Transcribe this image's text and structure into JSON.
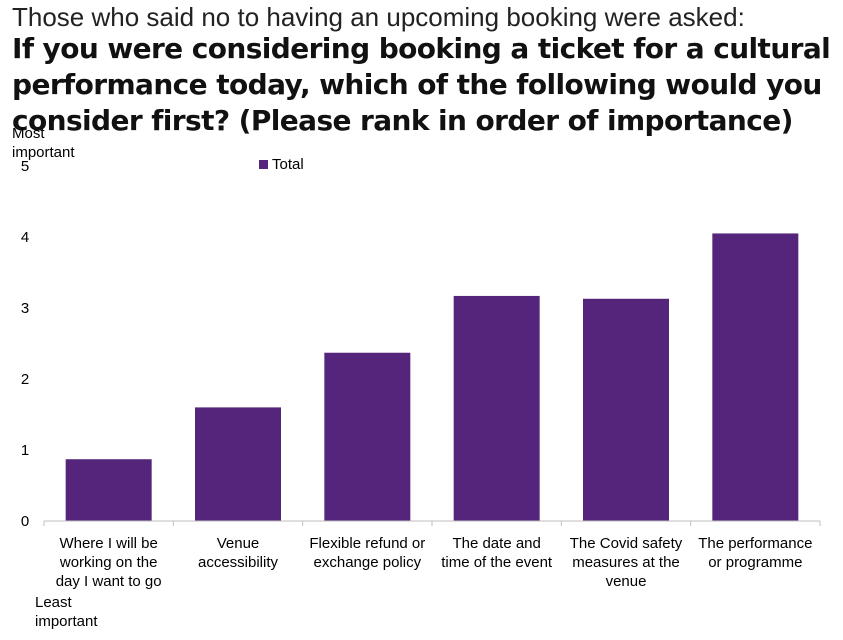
{
  "header": {
    "intro": "Those who said no to having an upcoming booking were asked:",
    "question": "If you were considering booking a ticket for a cultural performance today, which of the following would you consider first? (Please rank in order of importance)"
  },
  "annotations": {
    "top": "Most important",
    "bottom": "Least important"
  },
  "colors": {
    "bar": "#54257a",
    "axis": "#bfbfbf"
  },
  "chart_data": {
    "type": "bar",
    "categories": [
      "Where I will be working on the day I want to go",
      "Venue accessibility",
      "Flexible refund or exchange policy",
      "The date and time of the event",
      "The Covid safety measures at the venue",
      "The performance or programme"
    ],
    "category_lines": [
      [
        "Where I will be",
        "working on the",
        "day I want to go"
      ],
      [
        "Venue",
        "accessibility"
      ],
      [
        "Flexible refund or",
        "exchange policy"
      ],
      [
        "The date and",
        "time of the event"
      ],
      [
        "The Covid safety",
        "measures at the",
        "venue"
      ],
      [
        "The performance",
        "or programme"
      ]
    ],
    "series": [
      {
        "name": "Total",
        "values": [
          0.87,
          1.6,
          2.37,
          3.17,
          3.13,
          4.05
        ]
      }
    ],
    "ylim": [
      0,
      5
    ],
    "yticks": [
      "0",
      "1",
      "2",
      "3",
      "4",
      "5"
    ],
    "legend_position": "top-left",
    "grid": false
  }
}
